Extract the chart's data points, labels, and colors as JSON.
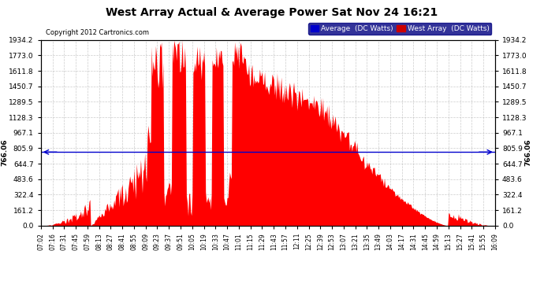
{
  "title": "West Array Actual & Average Power Sat Nov 24 16:21",
  "copyright": "Copyright 2012 Cartronics.com",
  "background_color": "#ffffff",
  "plot_bg_color": "#ffffff",
  "grid_color": "#aaaaaa",
  "ymax": 1934.2,
  "ymin": 0.0,
  "yticks": [
    0.0,
    161.2,
    322.4,
    483.6,
    644.7,
    805.9,
    967.1,
    1128.3,
    1289.5,
    1450.7,
    1611.8,
    1773.0,
    1934.2
  ],
  "yticklabels": [
    "0.0",
    "161.2",
    "322.4",
    "483.6",
    "644.7",
    "805.9",
    "967.1",
    "1128.3",
    "1289.5",
    "1450.7",
    "1611.8",
    "1773.0",
    "1934.2"
  ],
  "hline_value": 766.06,
  "hline_label": "766.06",
  "west_array_color": "#ff0000",
  "hline_color": "#0000cc",
  "legend_avg_bg": "#0000cc",
  "legend_west_bg": "#cc0000",
  "time_labels": [
    "07:02",
    "07:16",
    "07:31",
    "07:45",
    "07:59",
    "08:13",
    "08:27",
    "08:41",
    "08:55",
    "09:09",
    "09:23",
    "09:37",
    "09:51",
    "10:05",
    "10:19",
    "10:33",
    "10:47",
    "11:01",
    "11:15",
    "11:29",
    "11:43",
    "11:57",
    "12:11",
    "12:25",
    "12:39",
    "12:53",
    "13:07",
    "13:21",
    "13:35",
    "13:49",
    "14:03",
    "14:17",
    "14:31",
    "14:45",
    "14:59",
    "15:13",
    "15:27",
    "15:41",
    "15:55",
    "16:09"
  ]
}
